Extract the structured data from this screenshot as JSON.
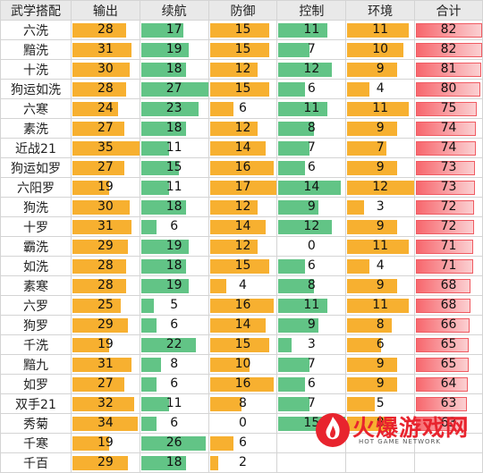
{
  "headers": [
    "武学搭配",
    "输出",
    "续航",
    "防御",
    "控制",
    "环境",
    "合计"
  ],
  "rows": [
    {
      "name": "六洗",
      "values": [
        28,
        17,
        15,
        11,
        11,
        82
      ]
    },
    {
      "name": "黯洗",
      "values": [
        31,
        19,
        15,
        7,
        10,
        82
      ]
    },
    {
      "name": "十洗",
      "values": [
        30,
        18,
        12,
        12,
        9,
        81
      ]
    },
    {
      "name": "狗运如洗",
      "values": [
        28,
        27,
        15,
        6,
        4,
        80
      ]
    },
    {
      "name": "六寒",
      "values": [
        24,
        23,
        6,
        11,
        11,
        75
      ]
    },
    {
      "name": "素洗",
      "values": [
        27,
        18,
        12,
        8,
        9,
        74
      ]
    },
    {
      "name": "近战21",
      "values": [
        35,
        11,
        14,
        7,
        7,
        74
      ]
    },
    {
      "name": "狗运如罗",
      "values": [
        27,
        15,
        16,
        6,
        9,
        73
      ]
    },
    {
      "name": "六阳罗",
      "values": [
        19,
        11,
        17,
        14,
        12,
        73
      ]
    },
    {
      "name": "狗洗",
      "values": [
        30,
        18,
        12,
        9,
        3,
        72
      ]
    },
    {
      "name": "十罗",
      "values": [
        31,
        6,
        14,
        12,
        9,
        72
      ]
    },
    {
      "name": "霸洗",
      "values": [
        29,
        19,
        12,
        0,
        11,
        71
      ]
    },
    {
      "name": "如洗",
      "values": [
        28,
        18,
        15,
        6,
        4,
        71
      ]
    },
    {
      "name": "素寒",
      "values": [
        28,
        19,
        4,
        8,
        9,
        68
      ]
    },
    {
      "name": "六罗",
      "values": [
        25,
        5,
        16,
        11,
        11,
        68
      ]
    },
    {
      "name": "狗罗",
      "values": [
        29,
        6,
        14,
        9,
        8,
        66
      ]
    },
    {
      "name": "千洗",
      "values": [
        19,
        22,
        15,
        3,
        6,
        65
      ]
    },
    {
      "name": "黯九",
      "values": [
        31,
        8,
        10,
        7,
        9,
        65
      ]
    },
    {
      "name": "如罗",
      "values": [
        27,
        6,
        16,
        6,
        9,
        64
      ]
    },
    {
      "name": "双手21",
      "values": [
        32,
        11,
        8,
        7,
        5,
        63
      ]
    },
    {
      "name": "秀菊",
      "values": [
        34,
        6,
        0,
        15,
        8,
        63
      ]
    },
    {
      "name": "千寒",
      "values": [
        19,
        26,
        6,
        "",
        "",
        ""
      ]
    },
    {
      "name": "千百",
      "values": [
        29,
        18,
        2,
        "",
        "",
        ""
      ]
    }
  ],
  "column_max": [
    35,
    27,
    17,
    15,
    12,
    82
  ],
  "column_colors": [
    "#f7b030",
    "#62c486",
    "#f7b030",
    "#62c486",
    "#f7b030",
    "#f7676d"
  ],
  "watermark": {
    "title": "火爆游戏网",
    "subtitle": "HOT GAME NETWORK"
  }
}
